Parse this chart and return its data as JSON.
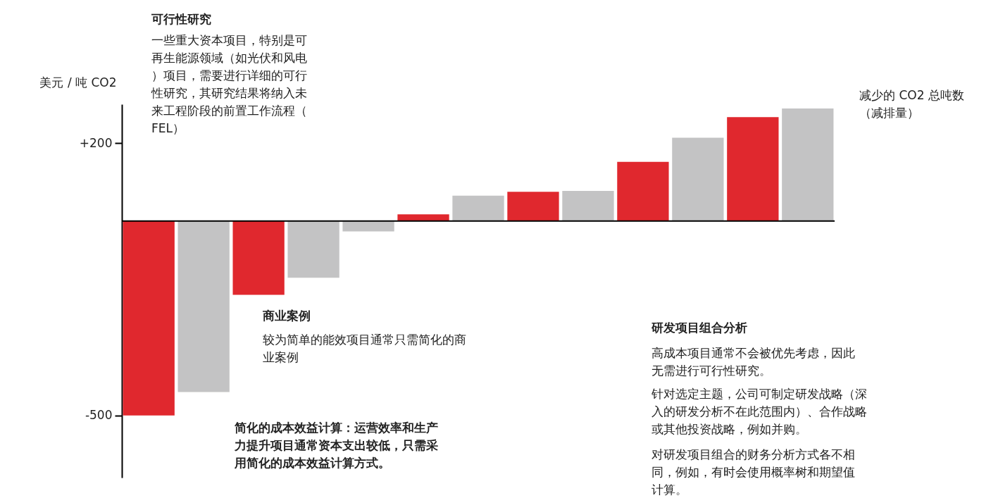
{
  "chart_data": {
    "type": "bar",
    "categories": [
      null,
      null,
      null,
      null,
      null,
      null,
      null,
      null,
      null,
      null,
      null,
      null,
      null
    ],
    "values": [
      -500,
      -440,
      -190,
      -146,
      -27,
      17,
      65,
      75,
      77,
      152,
      214,
      267,
      289
    ],
    "colors": [
      "#e0282e",
      "#c3c3c4",
      "#e0282e",
      "#c3c3c4",
      "#c3c3c4",
      "#e0282e",
      "#c3c3c4",
      "#e0282e",
      "#c3c3c4",
      "#e0282e",
      "#c3c3c4",
      "#e0282e",
      "#c3c3c4"
    ],
    "ylabel": "美元 / 吨 CO2",
    "xlabel": "减少的 CO2 总吨数（减排量）",
    "ylim": [
      -660,
      300
    ],
    "yticks": [
      {
        "value": 200,
        "label": "+200"
      },
      -500
    ],
    "grid": false,
    "annotations": [
      "可行性研究",
      "一些重大资本项目，特别是可再生能源领域（如光伏和风电）项目，需要进行详细的可行性研究，其研究结果将纳入未来工程阶段的前置工作流程（FEL）",
      "商业案例",
      "较为简单的能效项目通常只需简化的商业案例",
      "简化的成本效益计算：运营效率和生产力提升项目通常资本支出较低，只需采用简化的成本效益计算方式。",
      "研发项目组合分析",
      "高成本项目通常不会被优先考虑，因此无需进行可行性研究。",
      "针对选定主题，公司可制定研发战略（深入的研发分析不在此范围内）、合作战略或其他投资战略，例如并购。",
      "对研发项目组合的财务分析方式各不相同，例如，有时会使用概率树和期望值计算。"
    ]
  }
}
